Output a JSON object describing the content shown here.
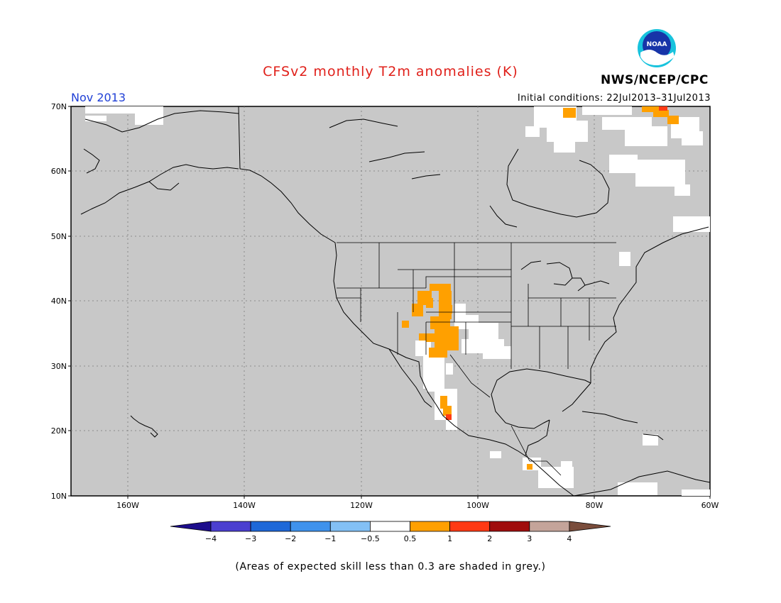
{
  "title": "CFSv2 monthly T2m anomalies (K)",
  "month_label": "Nov 2013",
  "initial_conditions": "Initial conditions: 22Jul2013–31Jul2013",
  "agency": "NWS/NCEP/CPC",
  "logo_text": "NOAA",
  "footnote": "(Areas of expected skill less than 0.3 are shaded in grey.)",
  "colors": {
    "title": "#e0201a",
    "month": "#1f3fd6",
    "map_background": "#c8c8c8",
    "no_signal": "#ffffff",
    "warm_05_1": "#ffa000",
    "warm_1_2": "#ff3a14",
    "coast": "#000000",
    "grid": "#7a7a7a"
  },
  "lat_labels": [
    "70N",
    "60N",
    "50N",
    "40N",
    "30N",
    "20N",
    "10N"
  ],
  "lon_labels": [
    "160W",
    "140W",
    "120W",
    "100W",
    "80W",
    "60W"
  ],
  "colorbar": {
    "ticks": [
      "−4",
      "−3",
      "−2",
      "−1",
      "−0.5",
      "0.5",
      "1",
      "2",
      "3",
      "4"
    ],
    "colors": [
      "#1d0d8c",
      "#4b3fd0",
      "#1e68d8",
      "#3f92ec",
      "#83c0f5",
      "#ffffff",
      "#ffa000",
      "#ff3a14",
      "#a00d0d",
      "#c4a49a",
      "#7a4d3c"
    ]
  }
}
